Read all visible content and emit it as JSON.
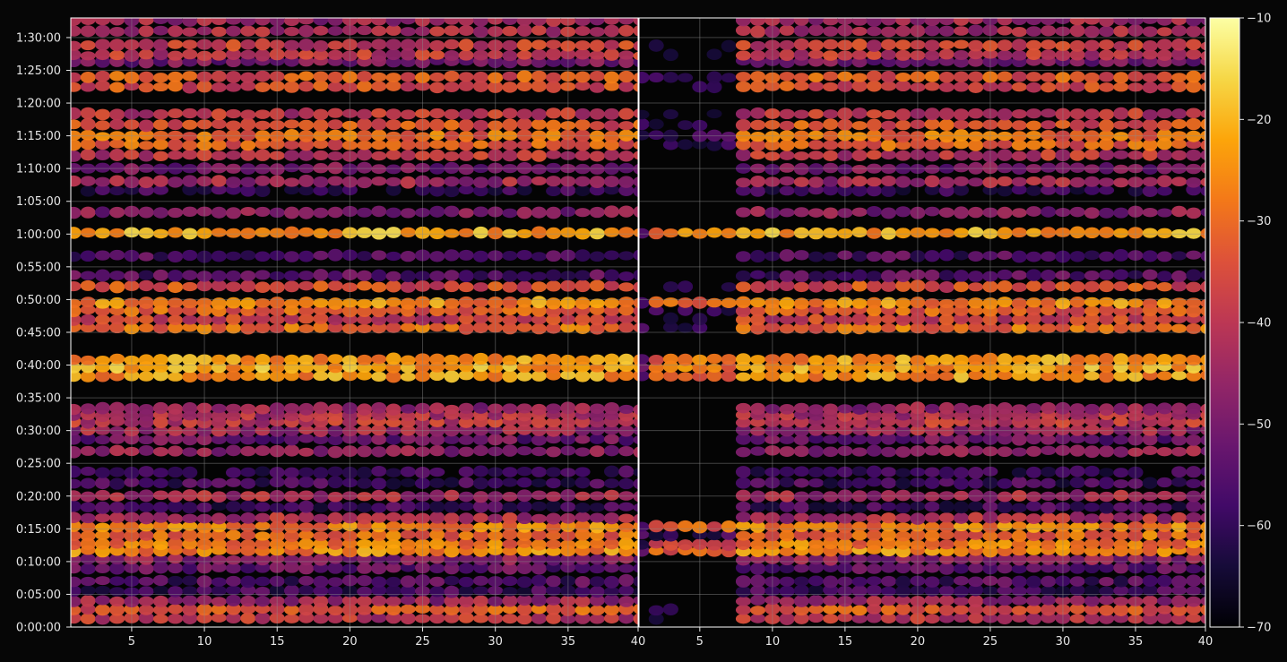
{
  "chart_data": [
    {
      "type": "heatmap",
      "panel": "left",
      "x_range": [
        1,
        40
      ],
      "y_range_seconds": [
        0,
        5580
      ],
      "x_ticks": [
        5,
        10,
        15,
        20,
        25,
        30,
        35,
        40
      ],
      "y_ticks": [
        {
          "seconds": 0,
          "label": "0:00:00"
        },
        {
          "seconds": 300,
          "label": "0:05:00"
        },
        {
          "seconds": 600,
          "label": "0:10:00"
        },
        {
          "seconds": 900,
          "label": "0:15:00"
        },
        {
          "seconds": 1200,
          "label": "0:20:00"
        },
        {
          "seconds": 1500,
          "label": "0:25:00"
        },
        {
          "seconds": 1800,
          "label": "0:30:00"
        },
        {
          "seconds": 2100,
          "label": "0:35:00"
        },
        {
          "seconds": 2400,
          "label": "0:40:00"
        },
        {
          "seconds": 2700,
          "label": "0:45:00"
        },
        {
          "seconds": 3000,
          "label": "0:50:00"
        },
        {
          "seconds": 3300,
          "label": "0:55:00"
        },
        {
          "seconds": 3600,
          "label": "1:00:00"
        },
        {
          "seconds": 3900,
          "label": "1:05:00"
        },
        {
          "seconds": 4200,
          "label": "1:10:00"
        },
        {
          "seconds": 4500,
          "label": "1:15:00"
        },
        {
          "seconds": 4800,
          "label": "1:20:00"
        },
        {
          "seconds": 5100,
          "label": "1:25:00"
        },
        {
          "seconds": 5400,
          "label": "1:30:00"
        }
      ],
      "grid": true,
      "rows": [
        {
          "t": 80,
          "level": -40
        },
        {
          "t": 160,
          "level": -33
        },
        {
          "t": 240,
          "level": -45
        },
        {
          "t": 330,
          "level": -58
        },
        {
          "t": 420,
          "level": -56
        },
        {
          "t": 540,
          "level": -53
        },
        {
          "t": 620,
          "level": -47
        },
        {
          "t": 700,
          "level": -26
        },
        {
          "t": 760,
          "level": -28
        },
        {
          "t": 840,
          "level": -30
        },
        {
          "t": 920,
          "level": -27
        },
        {
          "t": 1000,
          "level": -42
        },
        {
          "t": 1100,
          "level": -58
        },
        {
          "t": 1200,
          "level": -43
        },
        {
          "t": 1320,
          "level": -58
        },
        {
          "t": 1420,
          "level": -60
        },
        {
          "t": 1610,
          "level": -46
        },
        {
          "t": 1720,
          "level": -52
        },
        {
          "t": 1800,
          "level": -44
        },
        {
          "t": 1880,
          "level": -40
        },
        {
          "t": 1940,
          "level": -42
        },
        {
          "t": 2000,
          "level": -46
        },
        {
          "t": 2300,
          "level": -24
        },
        {
          "t": 2380,
          "level": -22
        },
        {
          "t": 2450,
          "level": -24
        },
        {
          "t": 2740,
          "level": -30
        },
        {
          "t": 2820,
          "level": -38
        },
        {
          "t": 2900,
          "level": -32
        },
        {
          "t": 2970,
          "level": -26
        },
        {
          "t": 3120,
          "level": -35
        },
        {
          "t": 3220,
          "level": -55
        },
        {
          "t": 3400,
          "level": -56
        },
        {
          "t": 3610,
          "level": -22
        },
        {
          "t": 3800,
          "level": -48
        },
        {
          "t": 4000,
          "level": -60
        },
        {
          "t": 4080,
          "level": -44
        },
        {
          "t": 4200,
          "level": -50
        },
        {
          "t": 4320,
          "level": -40
        },
        {
          "t": 4420,
          "level": -32
        },
        {
          "t": 4500,
          "level": -30
        },
        {
          "t": 4600,
          "level": -34
        },
        {
          "t": 4700,
          "level": -40
        },
        {
          "t": 4950,
          "level": -35
        },
        {
          "t": 5040,
          "level": -33
        },
        {
          "t": 5180,
          "level": -50
        },
        {
          "t": 5240,
          "level": -40
        },
        {
          "t": 5330,
          "level": -38
        },
        {
          "t": 5460,
          "level": -42
        },
        {
          "t": 5560,
          "level": -45
        }
      ]
    },
    {
      "type": "heatmap",
      "panel": "right",
      "x_range": [
        1,
        40
      ],
      "y_range_seconds": [
        0,
        5580
      ],
      "x_ticks": [
        5,
        10,
        15,
        20,
        25,
        30,
        35,
        40
      ],
      "x_tick_labels": [
        "5",
        "10",
        "15",
        "20",
        "25",
        "30",
        "35",
        "40"
      ],
      "grid": true,
      "onset_x": 8,
      "note": "same row structure as left panel, fainter for x < 8"
    },
    {
      "type": "colorbar",
      "colormap": "inferno",
      "range": [
        -70,
        -10
      ],
      "ticks": [
        -10,
        -20,
        -30,
        -40,
        -50,
        -60,
        -70
      ],
      "tick_labels": [
        "−10",
        "−20",
        "−30",
        "−40",
        "−50",
        "−60",
        "−70"
      ]
    }
  ],
  "left_x_tick_labels": [
    "5",
    "10",
    "15",
    "20",
    "25",
    "30",
    "35",
    "40"
  ],
  "colors": {
    "background": "#060606",
    "text": "#e6e6e6",
    "frame": "#ffffff",
    "grid": "#8c8c8c"
  }
}
